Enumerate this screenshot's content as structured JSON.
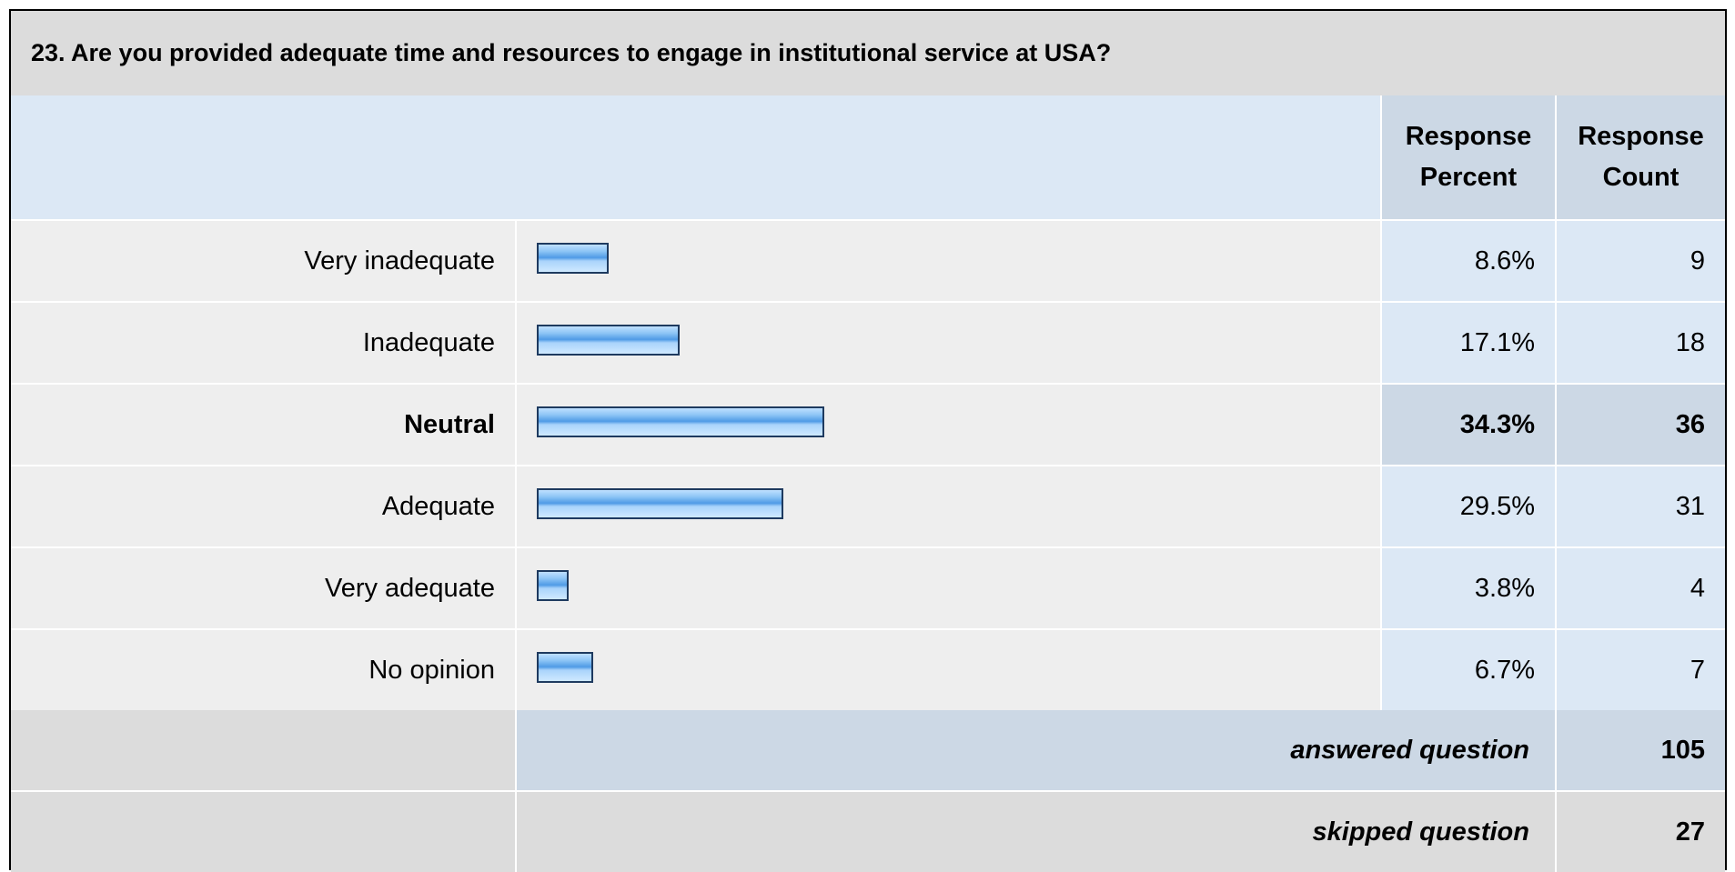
{
  "chart_data": {
    "type": "table",
    "title": "23. Are you provided adequate time and resources to engage in institutional service at USA?",
    "headers": {
      "percent": "Response Percent",
      "count": "Response Count"
    },
    "categories": [
      "Very inadequate",
      "Inadequate",
      "Neutral",
      "Adequate",
      "Very adequate",
      "No opinion"
    ],
    "rows": [
      {
        "label": "Very inadequate",
        "percent": 8.6,
        "percent_text": "8.6%",
        "count": "9"
      },
      {
        "label": "Inadequate",
        "percent": 17.1,
        "percent_text": "17.1%",
        "count": "18"
      },
      {
        "label": "Neutral",
        "percent": 34.3,
        "percent_text": "34.3%",
        "count": "36",
        "highlight": true
      },
      {
        "label": "Adequate",
        "percent": 29.5,
        "percent_text": "29.5%",
        "count": "31"
      },
      {
        "label": "Very adequate",
        "percent": 3.8,
        "percent_text": "3.8%",
        "count": "4"
      },
      {
        "label": "No opinion",
        "percent": 6.7,
        "percent_text": "6.7%",
        "count": "7"
      }
    ],
    "answered": {
      "label": "answered question",
      "value": "105"
    },
    "skipped": {
      "label": "skipped question",
      "value": "27"
    },
    "colors": {
      "title_bg": "#dcdcdc",
      "header_bg": "#dce8f5",
      "header_col_bg": "#ccd8e5",
      "row_bg": "#eeeeee",
      "bar_fill": "#4f9be6",
      "bar_border": "#1e3a5f"
    }
  }
}
